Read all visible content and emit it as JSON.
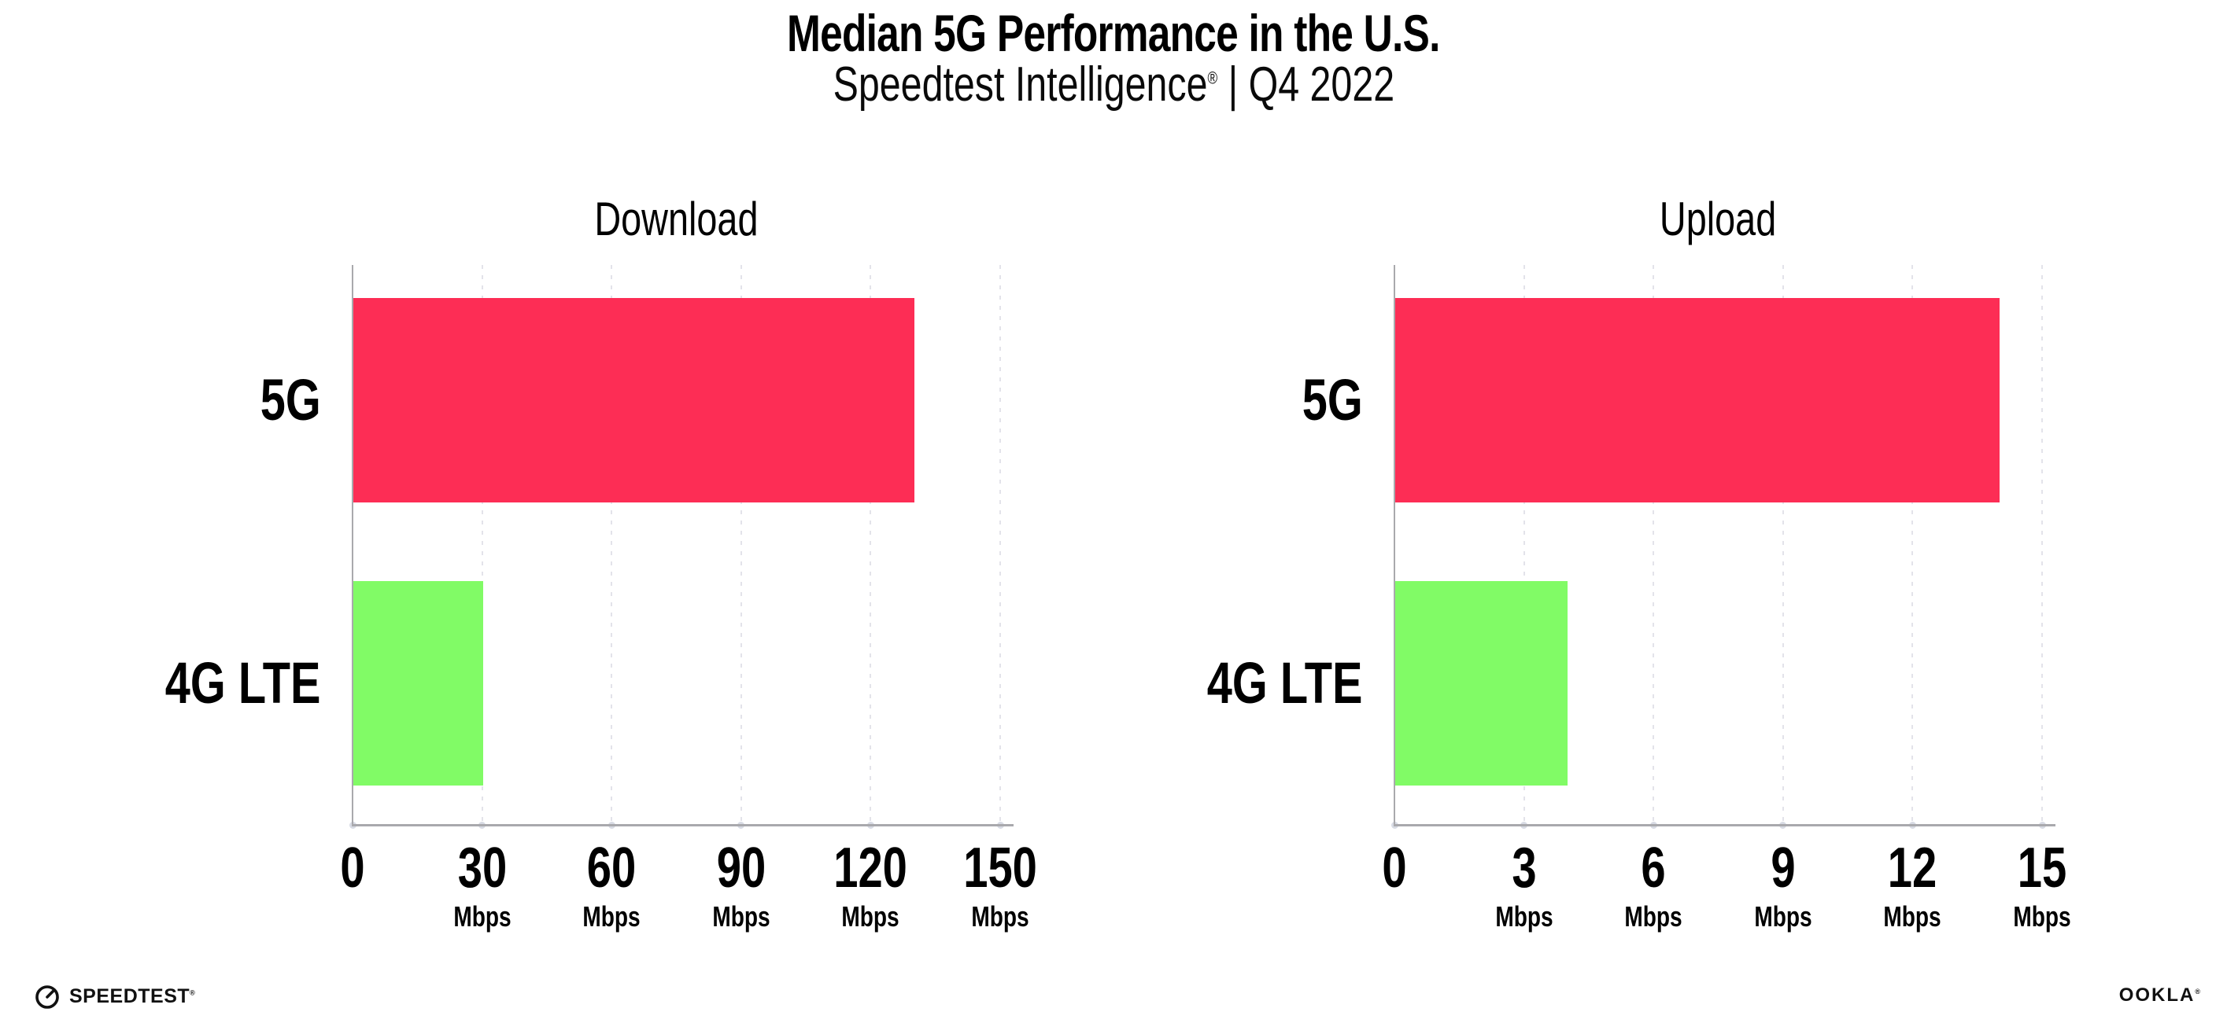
{
  "header": {
    "title": "Median 5G Performance in the U.S.",
    "subtitle_name": "Speedtest Intelligence",
    "subtitle_registered": "®",
    "subtitle_rest": " | Q4 2022"
  },
  "chart_data": [
    {
      "type": "bar",
      "orientation": "horizontal",
      "title": "Download",
      "categories": [
        "5G",
        "4G LTE"
      ],
      "values": [
        130,
        30
      ],
      "unit": "Mbps",
      "xlim": [
        0,
        150
      ],
      "xticks": [
        0,
        30,
        60,
        90,
        120,
        150
      ],
      "xtick_unit_label": "Mbps",
      "bar_colors": [
        "#FD2D55",
        "#81FB66"
      ],
      "grid": "dotted-vertical",
      "legend": "none"
    },
    {
      "type": "bar",
      "orientation": "horizontal",
      "title": "Upload",
      "categories": [
        "5G",
        "4G LTE"
      ],
      "values": [
        14,
        4
      ],
      "unit": "Mbps",
      "xlim": [
        0,
        15
      ],
      "xticks": [
        0,
        3,
        6,
        9,
        12,
        15
      ],
      "xtick_unit_label": "Mbps",
      "bar_colors": [
        "#FD2D55",
        "#81FB66"
      ],
      "grid": "dotted-vertical",
      "legend": "none"
    }
  ],
  "footer": {
    "speedtest_label": "SPEEDTEST",
    "speedtest_mark": "®",
    "ookla_label": "OOKLA",
    "ookla_mark": "®"
  },
  "colors": {
    "bar_5g": "#FD2D55",
    "bar_4g_lte": "#81FB66",
    "axis": "#a9a9ad",
    "gridline": "#e3e3ea",
    "tick_dot": "#d8dbe4",
    "text": "#000000",
    "background": "#ffffff"
  }
}
